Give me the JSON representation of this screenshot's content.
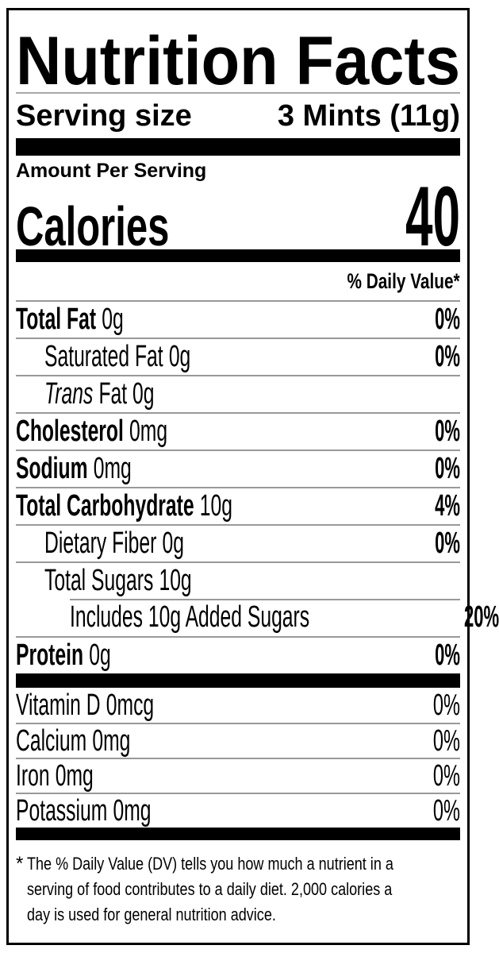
{
  "title": "Nutrition Facts",
  "serving": {
    "label": "Serving size",
    "value": "3 Mints (11g)"
  },
  "calories": {
    "header": "Amount Per Serving",
    "label": "Calories",
    "value": "40"
  },
  "daily_value_header": "% Daily Value*",
  "nutrients": [
    {
      "name": "Total Fat",
      "amount": "0g",
      "dv": "0%",
      "style": "bold",
      "indent": 0
    },
    {
      "name": "Saturated Fat",
      "amount": "0g",
      "dv": "0%",
      "style": "regular",
      "indent": 1
    },
    {
      "name": "Trans",
      "amount": "Fat 0g",
      "dv": "",
      "style": "italic-name",
      "indent": 1
    },
    {
      "name": "Cholesterol",
      "amount": "0mg",
      "dv": "0%",
      "style": "bold",
      "indent": 0
    },
    {
      "name": "Sodium",
      "amount": "0mg",
      "dv": "0%",
      "style": "bold",
      "indent": 0
    },
    {
      "name": "Total Carbohydrate",
      "amount": "10g",
      "dv": "4%",
      "style": "bold",
      "indent": 0
    },
    {
      "name": "Dietary Fiber",
      "amount": "0g",
      "dv": "0%",
      "style": "regular",
      "indent": 1
    },
    {
      "name": "Total Sugars",
      "amount": "10g",
      "dv": "",
      "style": "regular",
      "indent": 1
    },
    {
      "name": "Includes 10g Added Sugars",
      "amount": "",
      "dv": "20%",
      "style": "regular",
      "indent": 2,
      "partial_rule": true
    },
    {
      "name": "Protein",
      "amount": "0g",
      "dv": "0%",
      "style": "bold",
      "indent": 0
    }
  ],
  "vitamins": [
    {
      "name": "Vitamin D",
      "amount": "0mcg",
      "dv": "0%"
    },
    {
      "name": "Calcium",
      "amount": "0mg",
      "dv": "0%"
    },
    {
      "name": "Iron",
      "amount": "0mg",
      "dv": "0%"
    },
    {
      "name": "Potassium",
      "amount": "0mg",
      "dv": "0%"
    }
  ],
  "footnote": {
    "marker": "*",
    "lines": [
      "The % Daily Value (DV) tells you how much a nutrient in a",
      "serving of food contributes to a daily diet. 2,000 calories a",
      "day is used for general nutrition advice."
    ]
  }
}
